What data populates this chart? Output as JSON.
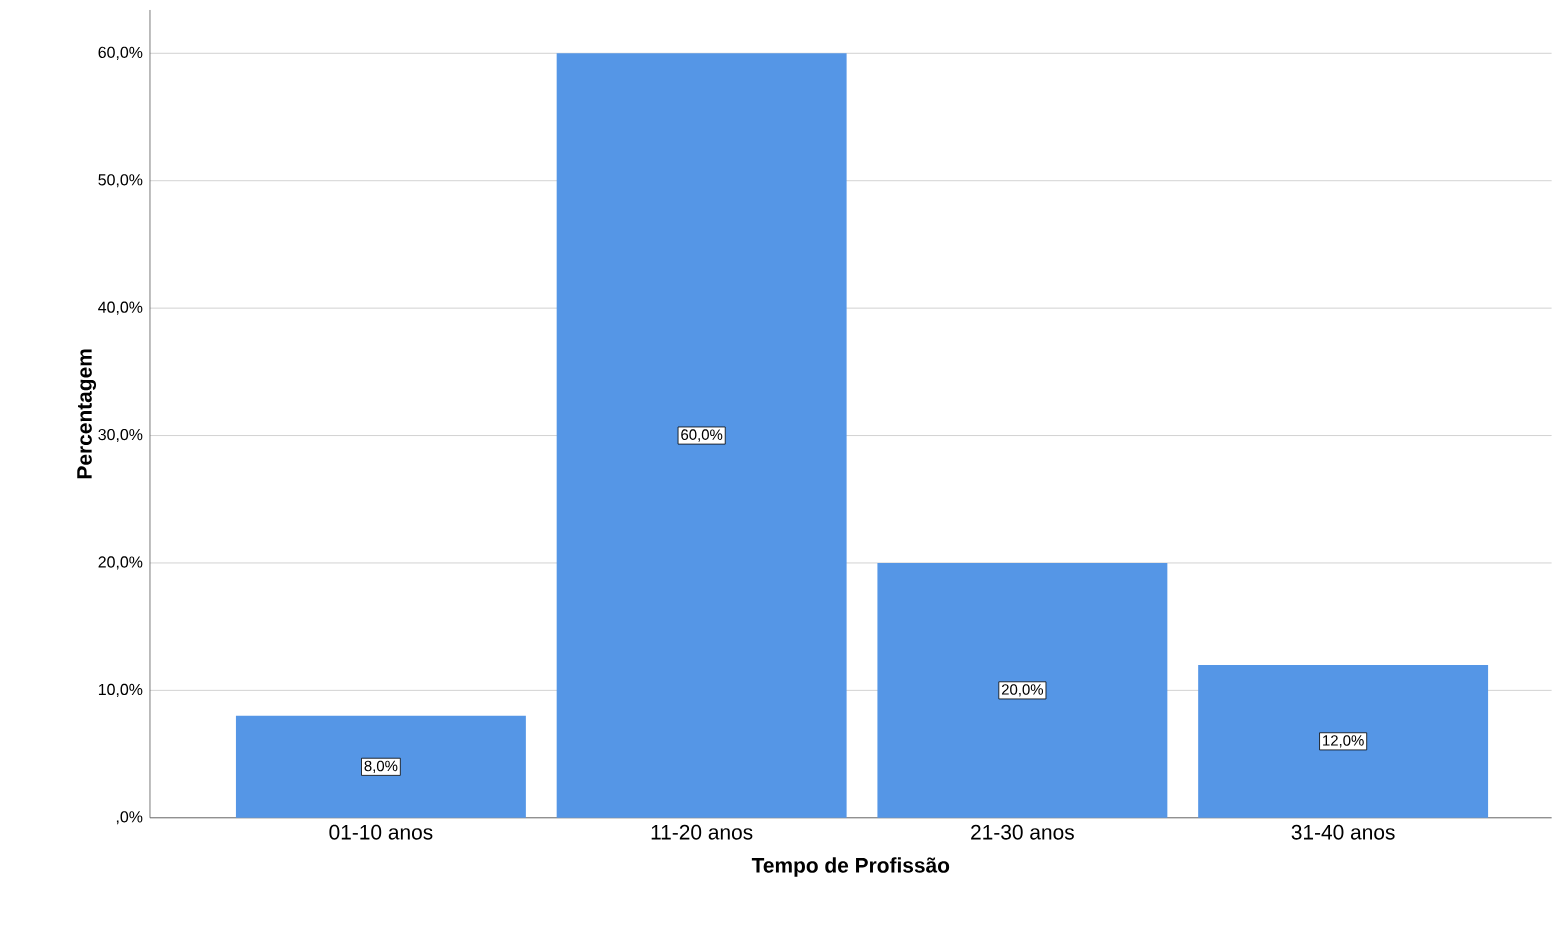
{
  "chart_data": {
    "type": "bar",
    "xlabel": "Tempo de Profissão",
    "ylabel": "Percentagem",
    "categories": [
      "01-10 anos",
      "11-20 anos",
      "21-30 anos",
      "31-40 anos"
    ],
    "values": [
      8,
      60,
      20,
      12
    ],
    "value_labels": [
      "8,0%",
      "60,0%",
      "20,0%",
      "12,0%"
    ],
    "color": "#5596e6",
    "ylim": [
      0,
      63.4
    ],
    "yticks": [
      {
        "value": 0,
        "label": ",0%"
      },
      {
        "value": 10,
        "label": "10,0%"
      },
      {
        "value": 20,
        "label": "20,0%"
      },
      {
        "value": 30,
        "label": "30,0%"
      },
      {
        "value": 40,
        "label": "40,0%"
      },
      {
        "value": 50,
        "label": "50,0%"
      },
      {
        "value": 60,
        "label": "60,0%"
      }
    ],
    "grid": "y"
  }
}
